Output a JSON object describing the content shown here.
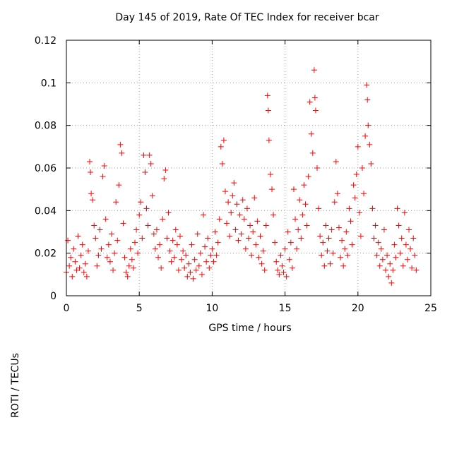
{
  "chart_data": {
    "type": "scatter",
    "title": "Day 145 of 2019, Rate Of TEC Index for receiver bcar",
    "xlabel": "GPS time / hours",
    "ylabel": "ROTI / TECUs",
    "xlim": [
      0,
      25
    ],
    "ylim": [
      0,
      0.12
    ],
    "x_ticks": [
      0,
      5,
      10,
      15,
      20,
      25
    ],
    "x_tick_labels": [
      "0",
      "5",
      "10",
      "15",
      "20",
      "25"
    ],
    "y_ticks": [
      0,
      0.02,
      0.04,
      0.06,
      0.08,
      0.1,
      0.12
    ],
    "y_tick_labels": [
      "0",
      "0.02",
      "0.04",
      "0.06",
      "0.08",
      "0.1",
      "0.12"
    ],
    "grid": true,
    "marker": "+",
    "color": "#ff0000",
    "series": [
      {
        "name": "ROTI",
        "points": [
          [
            0.0,
            0.011
          ],
          [
            0.1,
            0.026
          ],
          [
            0.2,
            0.014
          ],
          [
            0.3,
            0.018
          ],
          [
            0.4,
            0.009
          ],
          [
            0.5,
            0.022
          ],
          [
            0.6,
            0.016
          ],
          [
            0.7,
            0.012
          ],
          [
            0.8,
            0.028
          ],
          [
            0.9,
            0.013
          ],
          [
            1.0,
            0.019
          ],
          [
            1.1,
            0.024
          ],
          [
            1.2,
            0.011
          ],
          [
            1.3,
            0.015
          ],
          [
            1.4,
            0.009
          ],
          [
            1.5,
            0.021
          ],
          [
            1.6,
            0.063
          ],
          [
            1.65,
            0.058
          ],
          [
            1.7,
            0.048
          ],
          [
            1.8,
            0.045
          ],
          [
            1.9,
            0.033
          ],
          [
            2.0,
            0.027
          ],
          [
            2.1,
            0.014
          ],
          [
            2.2,
            0.019
          ],
          [
            2.3,
            0.031
          ],
          [
            2.4,
            0.022
          ],
          [
            2.5,
            0.056
          ],
          [
            2.6,
            0.061
          ],
          [
            2.7,
            0.036
          ],
          [
            2.8,
            0.018
          ],
          [
            2.9,
            0.024
          ],
          [
            3.0,
            0.016
          ],
          [
            3.1,
            0.029
          ],
          [
            3.2,
            0.012
          ],
          [
            3.3,
            0.02
          ],
          [
            3.4,
            0.044
          ],
          [
            3.5,
            0.026
          ],
          [
            3.6,
            0.052
          ],
          [
            3.7,
            0.071
          ],
          [
            3.8,
            0.067
          ],
          [
            3.9,
            0.034
          ],
          [
            4.0,
            0.018
          ],
          [
            4.1,
            0.011
          ],
          [
            4.2,
            0.009
          ],
          [
            4.3,
            0.014
          ],
          [
            4.4,
            0.022
          ],
          [
            4.5,
            0.017
          ],
          [
            4.6,
            0.013
          ],
          [
            4.7,
            0.025
          ],
          [
            4.8,
            0.031
          ],
          [
            4.9,
            0.02
          ],
          [
            5.0,
            0.038
          ],
          [
            5.1,
            0.044
          ],
          [
            5.2,
            0.027
          ],
          [
            5.3,
            0.066
          ],
          [
            5.4,
            0.058
          ],
          [
            5.5,
            0.041
          ],
          [
            5.6,
            0.033
          ],
          [
            5.7,
            0.066
          ],
          [
            5.8,
            0.062
          ],
          [
            5.9,
            0.047
          ],
          [
            6.0,
            0.029
          ],
          [
            6.1,
            0.022
          ],
          [
            6.2,
            0.031
          ],
          [
            6.3,
            0.018
          ],
          [
            6.4,
            0.024
          ],
          [
            6.5,
            0.013
          ],
          [
            6.6,
            0.036
          ],
          [
            6.7,
            0.055
          ],
          [
            6.8,
            0.059
          ],
          [
            6.9,
            0.027
          ],
          [
            7.0,
            0.039
          ],
          [
            7.1,
            0.021
          ],
          [
            7.2,
            0.016
          ],
          [
            7.3,
            0.026
          ],
          [
            7.4,
            0.018
          ],
          [
            7.5,
            0.031
          ],
          [
            7.6,
            0.024
          ],
          [
            7.7,
            0.012
          ],
          [
            7.8,
            0.028
          ],
          [
            7.9,
            0.017
          ],
          [
            8.0,
            0.021
          ],
          [
            8.1,
            0.013
          ],
          [
            8.2,
            0.019
          ],
          [
            8.3,
            0.009
          ],
          [
            8.4,
            0.015
          ],
          [
            8.5,
            0.011
          ],
          [
            8.6,
            0.024
          ],
          [
            8.7,
            0.008
          ],
          [
            8.8,
            0.017
          ],
          [
            8.9,
            0.012
          ],
          [
            9.0,
            0.029
          ],
          [
            9.1,
            0.014
          ],
          [
            9.2,
            0.02
          ],
          [
            9.3,
            0.01
          ],
          [
            9.4,
            0.038
          ],
          [
            9.5,
            0.023
          ],
          [
            9.6,
            0.016
          ],
          [
            9.7,
            0.027
          ],
          [
            9.8,
            0.013
          ],
          [
            9.9,
            0.019
          ],
          [
            10.0,
            0.022
          ],
          [
            10.1,
            0.016
          ],
          [
            10.2,
            0.03
          ],
          [
            10.3,
            0.019
          ],
          [
            10.4,
            0.025
          ],
          [
            10.5,
            0.036
          ],
          [
            10.6,
            0.07
          ],
          [
            10.7,
            0.062
          ],
          [
            10.8,
            0.073
          ],
          [
            10.9,
            0.049
          ],
          [
            11.0,
            0.034
          ],
          [
            11.1,
            0.044
          ],
          [
            11.2,
            0.028
          ],
          [
            11.3,
            0.039
          ],
          [
            11.4,
            0.047
          ],
          [
            11.5,
            0.053
          ],
          [
            11.6,
            0.031
          ],
          [
            11.7,
            0.043
          ],
          [
            11.8,
            0.026
          ],
          [
            11.9,
            0.038
          ],
          [
            12.0,
            0.029
          ],
          [
            12.1,
            0.045
          ],
          [
            12.2,
            0.036
          ],
          [
            12.3,
            0.022
          ],
          [
            12.4,
            0.041
          ],
          [
            12.5,
            0.027
          ],
          [
            12.6,
            0.033
          ],
          [
            12.7,
            0.019
          ],
          [
            12.8,
            0.03
          ],
          [
            12.9,
            0.046
          ],
          [
            13.0,
            0.024
          ],
          [
            13.1,
            0.035
          ],
          [
            13.2,
            0.018
          ],
          [
            13.3,
            0.028
          ],
          [
            13.4,
            0.015
          ],
          [
            13.5,
            0.021
          ],
          [
            13.6,
            0.012
          ],
          [
            13.7,
            0.033
          ],
          [
            13.8,
            0.094
          ],
          [
            13.85,
            0.087
          ],
          [
            13.9,
            0.073
          ],
          [
            14.0,
            0.057
          ],
          [
            14.1,
            0.05
          ],
          [
            14.2,
            0.038
          ],
          [
            14.3,
            0.025
          ],
          [
            14.4,
            0.016
          ],
          [
            14.5,
            0.012
          ],
          [
            14.6,
            0.01
          ],
          [
            14.7,
            0.019
          ],
          [
            14.8,
            0.014
          ],
          [
            14.9,
            0.011
          ],
          [
            15.0,
            0.022
          ],
          [
            15.1,
            0.009
          ],
          [
            15.2,
            0.03
          ],
          [
            15.3,
            0.017
          ],
          [
            15.4,
            0.025
          ],
          [
            15.5,
            0.013
          ],
          [
            15.6,
            0.05
          ],
          [
            15.7,
            0.036
          ],
          [
            15.8,
            0.022
          ],
          [
            15.9,
            0.031
          ],
          [
            16.0,
            0.045
          ],
          [
            16.1,
            0.027
          ],
          [
            16.2,
            0.038
          ],
          [
            16.3,
            0.052
          ],
          [
            16.4,
            0.043
          ],
          [
            16.5,
            0.033
          ],
          [
            16.6,
            0.056
          ],
          [
            16.7,
            0.091
          ],
          [
            16.8,
            0.076
          ],
          [
            16.9,
            0.067
          ],
          [
            17.0,
            0.106
          ],
          [
            17.05,
            0.093
          ],
          [
            17.1,
            0.087
          ],
          [
            17.2,
            0.06
          ],
          [
            17.3,
            0.041
          ],
          [
            17.4,
            0.028
          ],
          [
            17.5,
            0.019
          ],
          [
            17.6,
            0.025
          ],
          [
            17.7,
            0.014
          ],
          [
            17.8,
            0.033
          ],
          [
            17.9,
            0.021
          ],
          [
            18.0,
            0.027
          ],
          [
            18.1,
            0.015
          ],
          [
            18.2,
            0.031
          ],
          [
            18.3,
            0.02
          ],
          [
            18.4,
            0.044
          ],
          [
            18.5,
            0.063
          ],
          [
            18.6,
            0.048
          ],
          [
            18.7,
            0.032
          ],
          [
            18.8,
            0.018
          ],
          [
            18.9,
            0.026
          ],
          [
            19.0,
            0.014
          ],
          [
            19.1,
            0.022
          ],
          [
            19.2,
            0.03
          ],
          [
            19.3,
            0.019
          ],
          [
            19.4,
            0.041
          ],
          [
            19.5,
            0.035
          ],
          [
            19.6,
            0.024
          ],
          [
            19.7,
            0.052
          ],
          [
            19.8,
            0.046
          ],
          [
            19.9,
            0.057
          ],
          [
            20.0,
            0.07
          ],
          [
            20.1,
            0.039
          ],
          [
            20.2,
            0.028
          ],
          [
            20.3,
            0.06
          ],
          [
            20.4,
            0.048
          ],
          [
            20.5,
            0.075
          ],
          [
            20.6,
            0.099
          ],
          [
            20.65,
            0.092
          ],
          [
            20.7,
            0.08
          ],
          [
            20.8,
            0.071
          ],
          [
            20.9,
            0.062
          ],
          [
            21.0,
            0.041
          ],
          [
            21.1,
            0.027
          ],
          [
            21.2,
            0.033
          ],
          [
            21.3,
            0.019
          ],
          [
            21.4,
            0.025
          ],
          [
            21.5,
            0.014
          ],
          [
            21.6,
            0.022
          ],
          [
            21.7,
            0.017
          ],
          [
            21.8,
            0.031
          ],
          [
            21.9,
            0.012
          ],
          [
            22.0,
            0.019
          ],
          [
            22.1,
            0.009
          ],
          [
            22.2,
            0.015
          ],
          [
            22.3,
            0.006
          ],
          [
            22.4,
            0.012
          ],
          [
            22.5,
            0.024
          ],
          [
            22.6,
            0.018
          ],
          [
            22.7,
            0.041
          ],
          [
            22.8,
            0.033
          ],
          [
            22.9,
            0.02
          ],
          [
            23.0,
            0.027
          ],
          [
            23.1,
            0.014
          ],
          [
            23.2,
            0.039
          ],
          [
            23.3,
            0.024
          ],
          [
            23.4,
            0.017
          ],
          [
            23.5,
            0.031
          ],
          [
            23.6,
            0.022
          ],
          [
            23.7,
            0.013
          ],
          [
            23.8,
            0.027
          ],
          [
            23.9,
            0.019
          ],
          [
            24.0,
            0.012
          ]
        ]
      }
    ]
  }
}
